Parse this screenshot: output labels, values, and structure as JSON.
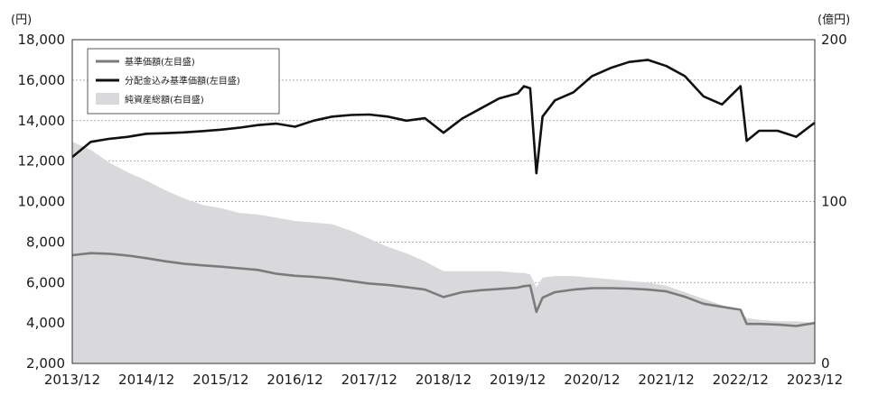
{
  "chart_data": {
    "type": "line",
    "title": "",
    "left_unit": "(円)",
    "right_unit": "(億円)",
    "xlim": [
      "2013-12",
      "2023-12"
    ],
    "ylim_left": [
      2000,
      18000
    ],
    "ylim_right": [
      0,
      200
    ],
    "grid": true,
    "legend_position": "top-left",
    "x_ticks": [
      "2013/12",
      "2014/12",
      "2015/12",
      "2016/12",
      "2017/12",
      "2018/12",
      "2019/12",
      "2020/12",
      "2021/12",
      "2022/12",
      "2023/12"
    ],
    "y_ticks_left": [
      "2,000",
      "4,000",
      "6,000",
      "8,000",
      "10,000",
      "12,000",
      "14,000",
      "16,000",
      "18,000"
    ],
    "y_ticks_right": [
      "0",
      "100",
      "200"
    ],
    "colors": {
      "nav": "#7b7b7b",
      "nav_with_dividends": "#111111",
      "net_assets_fill": "#d9d9dc",
      "grid": "#9a9a9a",
      "axis": "#333333"
    },
    "series": [
      {
        "name": "基準価額(左目盛)",
        "axis": "left",
        "style": "line",
        "x": [
          "2013-12",
          "2014-03",
          "2014-06",
          "2014-09",
          "2014-12",
          "2015-03",
          "2015-06",
          "2015-09",
          "2015-12",
          "2016-03",
          "2016-06",
          "2016-09",
          "2016-12",
          "2017-03",
          "2017-06",
          "2017-09",
          "2017-12",
          "2018-03",
          "2018-06",
          "2018-09",
          "2018-12",
          "2019-03",
          "2019-06",
          "2019-09",
          "2019-12",
          "2020-01",
          "2020-02",
          "2020-03",
          "2020-04",
          "2020-06",
          "2020-09",
          "2020-12",
          "2021-03",
          "2021-06",
          "2021-09",
          "2021-12",
          "2022-03",
          "2022-06",
          "2022-09",
          "2022-12",
          "2023-01",
          "2023-03",
          "2023-06",
          "2023-09",
          "2023-12"
        ],
        "values": [
          7350,
          7450,
          7420,
          7330,
          7200,
          7050,
          6930,
          6850,
          6780,
          6700,
          6620,
          6430,
          6330,
          6280,
          6200,
          6070,
          5950,
          5880,
          5770,
          5650,
          5280,
          5520,
          5620,
          5680,
          5750,
          5820,
          5850,
          4550,
          5250,
          5520,
          5650,
          5720,
          5720,
          5700,
          5650,
          5560,
          5300,
          4950,
          4800,
          4650,
          3950,
          3950,
          3920,
          3850,
          4000
        ]
      },
      {
        "name": "分配金込み基準価額(左目盛)",
        "axis": "left",
        "style": "line",
        "x": [
          "2013-12",
          "2014-03",
          "2014-06",
          "2014-09",
          "2014-12",
          "2015-03",
          "2015-06",
          "2015-09",
          "2015-12",
          "2016-03",
          "2016-06",
          "2016-09",
          "2016-12",
          "2017-03",
          "2017-06",
          "2017-09",
          "2017-12",
          "2018-03",
          "2018-06",
          "2018-09",
          "2018-12",
          "2019-03",
          "2019-06",
          "2019-09",
          "2019-12",
          "2020-01",
          "2020-02",
          "2020-03",
          "2020-04",
          "2020-06",
          "2020-09",
          "2020-12",
          "2021-03",
          "2021-06",
          "2021-09",
          "2021-12",
          "2022-03",
          "2022-06",
          "2022-09",
          "2022-12",
          "2023-01",
          "2023-03",
          "2023-06",
          "2023-09",
          "2023-12"
        ],
        "values": [
          12200,
          12950,
          13100,
          13200,
          13350,
          13380,
          13420,
          13480,
          13550,
          13650,
          13780,
          13850,
          13700,
          14000,
          14200,
          14280,
          14300,
          14200,
          14000,
          14120,
          13400,
          14100,
          14600,
          15100,
          15350,
          15700,
          15600,
          11400,
          14200,
          15000,
          15400,
          16200,
          16600,
          16900,
          17000,
          16700,
          16200,
          15200,
          14800,
          15700,
          13000,
          13500,
          13500,
          13200,
          13900
        ]
      },
      {
        "name": "純資産総額(右目盛)",
        "axis": "right",
        "style": "area",
        "x": [
          "2013-12",
          "2014-03",
          "2014-06",
          "2014-09",
          "2014-12",
          "2015-03",
          "2015-06",
          "2015-09",
          "2015-12",
          "2016-03",
          "2016-06",
          "2016-09",
          "2016-12",
          "2017-03",
          "2017-06",
          "2017-09",
          "2017-12",
          "2018-03",
          "2018-06",
          "2018-09",
          "2018-12",
          "2019-03",
          "2019-06",
          "2019-09",
          "2019-12",
          "2020-01",
          "2020-02",
          "2020-03",
          "2020-04",
          "2020-06",
          "2020-09",
          "2020-12",
          "2021-03",
          "2021-06",
          "2021-09",
          "2021-12",
          "2022-03",
          "2022-06",
          "2022-09",
          "2022-12",
          "2023-01",
          "2023-03",
          "2023-06",
          "2023-09",
          "2023-12"
        ],
        "values": [
          137,
          132,
          124,
          118,
          113,
          107,
          102,
          98,
          96,
          93,
          92,
          90,
          88,
          87,
          86,
          82,
          77,
          72,
          68,
          63,
          57,
          57,
          57,
          57,
          56,
          56,
          55,
          47,
          53,
          54,
          54,
          53,
          52,
          51,
          50,
          48,
          44,
          40,
          36,
          32,
          28,
          27,
          26,
          26,
          25
        ]
      }
    ]
  }
}
